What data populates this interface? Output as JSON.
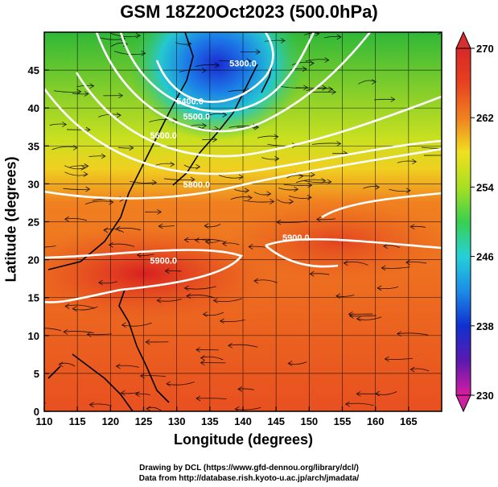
{
  "title": "GSM 18Z20Oct2023 (500.0hPa)",
  "x_axis": {
    "label": "Longitude (degrees)",
    "min": 110,
    "max": 170,
    "ticks": [
      110,
      115,
      120,
      125,
      130,
      135,
      140,
      145,
      150,
      155,
      160,
      165
    ]
  },
  "y_axis": {
    "label": "Latitude  (degrees)",
    "min": 0,
    "max": 50,
    "ticks": [
      0,
      5,
      10,
      15,
      20,
      25,
      30,
      35,
      40,
      45
    ]
  },
  "colorbar": {
    "min": 230,
    "max": 270,
    "tick_labels": [
      230,
      238,
      246,
      254,
      262,
      270
    ],
    "colors": [
      "#d81ca0",
      "#5a1ab0",
      "#1030d0",
      "#1c8ce8",
      "#25d0d8",
      "#38d050",
      "#a8e020",
      "#f0e020",
      "#f08020",
      "#e84020",
      "#d82828"
    ]
  },
  "contour_labels": [
    {
      "text": "5300.0",
      "lon": 140,
      "lat": 45.5
    },
    {
      "text": "5400.0",
      "lon": 132,
      "lat": 40.5
    },
    {
      "text": "5500.0",
      "lon": 133,
      "lat": 38.5
    },
    {
      "text": "5600.0",
      "lon": 128,
      "lat": 36
    },
    {
      "text": "5800.0",
      "lon": 133,
      "lat": 29.5
    },
    {
      "text": "5900.0",
      "lon": 128,
      "lat": 19.5
    },
    {
      "text": "5900.0",
      "lon": 148,
      "lat": 22.5
    }
  ],
  "credits": {
    "line1": "Drawing by DCL (https://www.gfd-dennou.org/library/dcl/)",
    "line2": "Data from http://database.rish.kyoto-u.ac.jp/arch/jmadata/"
  }
}
